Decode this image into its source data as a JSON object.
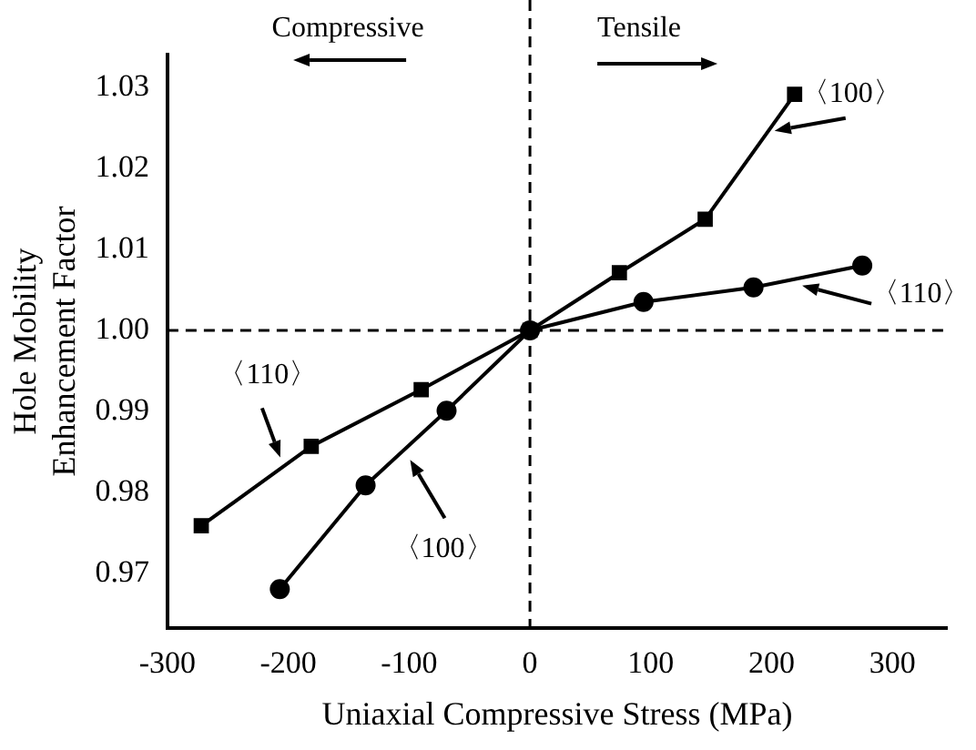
{
  "chart_data": {
    "type": "line",
    "xlabel": "Uniaxial Compressive Stress (MPa)",
    "ylabel": "Hole Mobility\nEnhancement Factor",
    "series": [
      {
        "color": "#000000",
        "marker": "square",
        "x": [
          -272,
          -181,
          -90,
          0,
          74,
          145,
          219
        ],
        "values": [
          0.9759,
          0.9857,
          0.9927,
          1.0,
          1.0071,
          1.0137,
          1.0291
        ]
      },
      {
        "color": "#000000",
        "marker": "circle",
        "x": [
          -207,
          -136,
          -69,
          0,
          94,
          185,
          275
        ],
        "values": [
          0.9681,
          0.9809,
          0.9901,
          1.0,
          1.0035,
          1.0053,
          1.008
        ]
      }
    ],
    "xlim": [
      -300,
      345
    ],
    "xticks": [
      -300,
      -200,
      -100,
      0,
      100,
      200,
      300
    ],
    "ylim": [
      0.9633,
      1.034
    ],
    "yticks": [
      {
        "value": 0.97,
        "label": "0.97"
      },
      {
        "value": 0.98,
        "label": "0.98"
      },
      {
        "value": 0.99,
        "label": "0.99"
      },
      {
        "value": 1.0,
        "label": "1.00"
      },
      {
        "value": 1.01,
        "label": "1.01"
      },
      {
        "value": 1.02,
        "label": "1.02"
      },
      {
        "value": 1.03,
        "label": "1.03"
      }
    ],
    "ref_lines": [
      {
        "axis": "x",
        "value": 0,
        "line_style": "dashed"
      },
      {
        "axis": "y",
        "value": 1.0,
        "line_style": "dashed"
      }
    ],
    "annotations": [
      "Compressive",
      "Tensile",
      "〈100〉",
      "〈110〉",
      "〈110〉",
      "〈100〉"
    ],
    "grid": false,
    "legend": false,
    "line_style": "solid"
  }
}
